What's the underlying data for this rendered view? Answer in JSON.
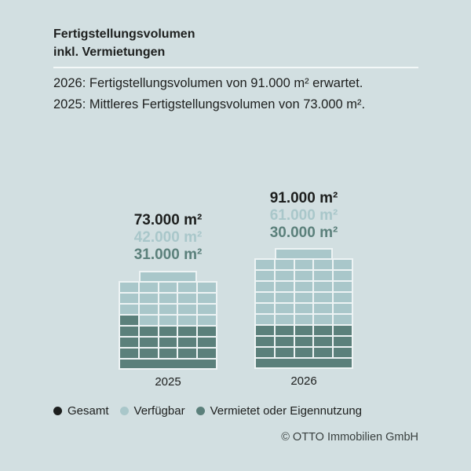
{
  "header": {
    "title_line1": "Fertigstellungsvolumen",
    "title_line2": "inkl. Vermietungen"
  },
  "intro": {
    "line1": "2026: Fertigstellungsvolumen von 91.000 m² erwartet.",
    "line2": "2025: Mittleres Fertigstellungsvolumen von 73.000 m²."
  },
  "colors": {
    "background": "#d2dfe1",
    "total": "#1d1f1e",
    "available": "#a9c7ca",
    "let": "#5b807b",
    "grid_line": "#edf3f4"
  },
  "chart_data": {
    "type": "bar",
    "variant": "stacked-building-grid",
    "title": "Fertigstellungsvolumen inkl. Vermietungen",
    "unit": "m²",
    "categories": [
      "2025",
      "2026"
    ],
    "series": [
      {
        "name": "Gesamt",
        "values": [
          73000,
          91000
        ],
        "color": "#1d1f1e"
      },
      {
        "name": "Verfügbar",
        "values": [
          42000,
          61000
        ],
        "color": "#a9c7ca"
      },
      {
        "name": "Vermietet oder Eigennutzung",
        "values": [
          31000,
          30000
        ],
        "color": "#5b807b"
      }
    ],
    "legend_position": "bottom-left",
    "grid": false,
    "buildings": [
      {
        "year": "2025",
        "labels": [
          {
            "text": "73.000 m²",
            "tone": "total",
            "series": "Gesamt"
          },
          {
            "text": "42.000 m²",
            "tone": "available",
            "series": "Verfügbar"
          },
          {
            "text": "31.000 m²",
            "tone": "let",
            "series": "Vermietet oder Eigennutzung"
          }
        ],
        "penthouse": "L",
        "floors": [
          "LLLLL",
          "LLLLL",
          "LLLLL",
          "DLLLL",
          "DDDDD",
          "DDDDD",
          "DDDDD"
        ],
        "base": "D"
      },
      {
        "year": "2026",
        "labels": [
          {
            "text": "91.000 m²",
            "tone": "total",
            "series": "Gesamt"
          },
          {
            "text": "61.000 m²",
            "tone": "available",
            "series": "Verfügbar"
          },
          {
            "text": "30.000 m²",
            "tone": "let",
            "series": "Vermietet oder Eigennutzung"
          }
        ],
        "penthouse": "L",
        "floors": [
          "LLLLL",
          "LLLLL",
          "LLLLL",
          "LLLLL",
          "LLLLL",
          "LLLLL",
          "DDDDD",
          "DDDDD",
          "DDDDD"
        ],
        "base": "D"
      }
    ]
  },
  "legend": {
    "items": [
      {
        "label": "Gesamt",
        "color": "#1d1f1e"
      },
      {
        "label": "Verfügbar",
        "color": "#a9c7ca"
      },
      {
        "label": "Vermietet oder Eigennutzung",
        "color": "#5b807b"
      }
    ]
  },
  "footer": {
    "copyright": "© OTTO Immobilien GmbH"
  }
}
